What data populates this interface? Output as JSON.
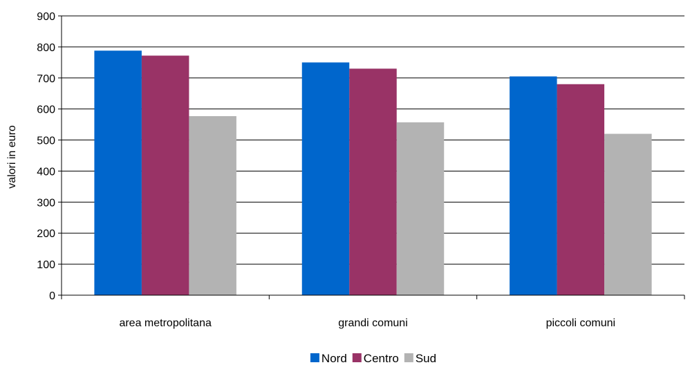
{
  "chart_data": {
    "type": "bar",
    "title": "",
    "ylabel": "valori in euro",
    "xlabel": "",
    "ylim": [
      0,
      900
    ],
    "yticks": [
      0,
      100,
      200,
      300,
      400,
      500,
      600,
      700,
      800,
      900
    ],
    "grid": true,
    "legend_position": "bottom",
    "categories": [
      "area metropolitana",
      "grandi comuni",
      "piccoli comuni"
    ],
    "series": [
      {
        "name": "Nord",
        "color": "#0066CC",
        "values": [
          788,
          750,
          705
        ]
      },
      {
        "name": "Centro",
        "color": "#993366",
        "values": [
          772,
          730,
          680
        ]
      },
      {
        "name": "Sud",
        "color": "#B3B3B3",
        "values": [
          577,
          557,
          520
        ]
      }
    ]
  }
}
